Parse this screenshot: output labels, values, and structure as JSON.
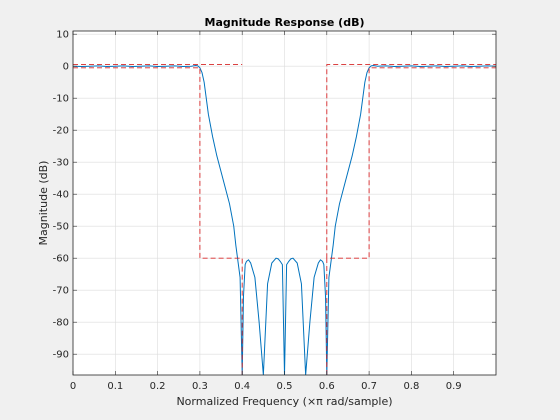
{
  "chart_data": {
    "type": "line",
    "title": "Magnitude Response (dB)",
    "xlabel": "Normalized Frequency (×π rad/sample)",
    "ylabel": "Magnitude (dB)",
    "xlim": [
      0,
      1
    ],
    "ylim": [
      -96.5,
      11
    ],
    "xticks": [
      0,
      0.1,
      0.2,
      0.3,
      0.4,
      0.5,
      0.6,
      0.7,
      0.8,
      0.9
    ],
    "xtick_labels": [
      "0",
      "0.1",
      "0.2",
      "0.3",
      "0.4",
      "0.5",
      "0.6",
      "0.7",
      "0.8",
      "0.9"
    ],
    "yticks": [
      10,
      0,
      -10,
      -20,
      -30,
      -40,
      -50,
      -60,
      -70,
      -80,
      -90
    ],
    "ytick_labels": [
      "10",
      "0",
      "-10",
      "-20",
      "-30",
      "-40",
      "-50",
      "-60",
      "-70",
      "-80",
      "-90"
    ],
    "grid": true,
    "series": [
      {
        "color": "#0072bd",
        "style": "solid",
        "x": [
          0,
          0.02,
          0.04,
          0.06,
          0.08,
          0.1,
          0.12,
          0.14,
          0.16,
          0.18,
          0.2,
          0.22,
          0.24,
          0.26,
          0.28,
          0.29,
          0.295,
          0.3,
          0.305,
          0.31,
          0.315,
          0.32,
          0.33,
          0.34,
          0.35,
          0.36,
          0.37,
          0.38,
          0.385,
          0.39,
          0.395,
          0.4,
          0.403,
          0.407,
          0.41,
          0.415,
          0.42,
          0.43,
          0.44,
          0.45,
          0.46,
          0.47,
          0.48,
          0.485,
          0.49,
          0.495,
          0.5,
          0.505,
          0.51,
          0.515,
          0.52,
          0.53,
          0.54,
          0.55,
          0.56,
          0.57,
          0.58,
          0.585,
          0.59,
          0.593,
          0.597,
          0.6,
          0.605,
          0.61,
          0.615,
          0.62,
          0.63,
          0.64,
          0.65,
          0.66,
          0.67,
          0.68,
          0.685,
          0.69,
          0.695,
          0.7,
          0.705,
          0.71,
          0.72,
          0.74,
          0.76,
          0.78,
          0.8,
          0.82,
          0.84,
          0.86,
          0.88,
          0.9,
          0.92,
          0.94,
          0.96,
          0.98,
          1
        ],
        "y": [
          0,
          -0.1,
          0,
          0.1,
          -0.1,
          0,
          0.1,
          -0.1,
          0,
          0.1,
          -0.1,
          0,
          0.1,
          -0.1,
          0,
          0.2,
          0.1,
          -0.5,
          -2,
          -5,
          -10,
          -15,
          -22,
          -28,
          -33,
          -38,
          -43,
          -50,
          -56,
          -61,
          -66,
          -96.5,
          -72,
          -62,
          -61,
          -60.5,
          -61.5,
          -66,
          -80,
          -96.5,
          -68,
          -61.5,
          -60,
          -60.2,
          -61,
          -62,
          -96.5,
          -62,
          -61,
          -60.2,
          -60,
          -61.5,
          -68,
          -96.5,
          -80,
          -66,
          -61.5,
          -60.5,
          -61,
          -62,
          -72,
          -96.5,
          -66,
          -61,
          -56,
          -50,
          -43,
          -38,
          -33,
          -28,
          -22,
          -15,
          -10,
          -5,
          -2,
          -0.5,
          0.1,
          0.2,
          0,
          0.1,
          -0.1,
          0,
          0.1,
          -0.1,
          0,
          0.1,
          -0.1,
          0,
          0.1,
          -0.1,
          0,
          0.1,
          0
        ]
      },
      {
        "color": "#d62728",
        "style": "dashed",
        "x": [
          0,
          0.3,
          0.3,
          0.4,
          0.4
        ],
        "y": [
          -0.5,
          -0.5,
          -60,
          -60,
          -96.5
        ]
      },
      {
        "color": "#d62728",
        "style": "dashed",
        "x": [
          0,
          0.4
        ],
        "y": [
          0.5,
          0.5
        ]
      },
      {
        "color": "#d62728",
        "style": "dashed",
        "x": [
          0.6,
          0.6,
          0.7,
          0.7,
          1
        ],
        "y": [
          -96.5,
          -60,
          -60,
          -0.5,
          -0.5
        ]
      },
      {
        "color": "#d62728",
        "style": "dashed",
        "x": [
          0.6,
          0.6,
          1
        ],
        "y": [
          -60,
          0.5,
          0.5
        ]
      }
    ]
  }
}
